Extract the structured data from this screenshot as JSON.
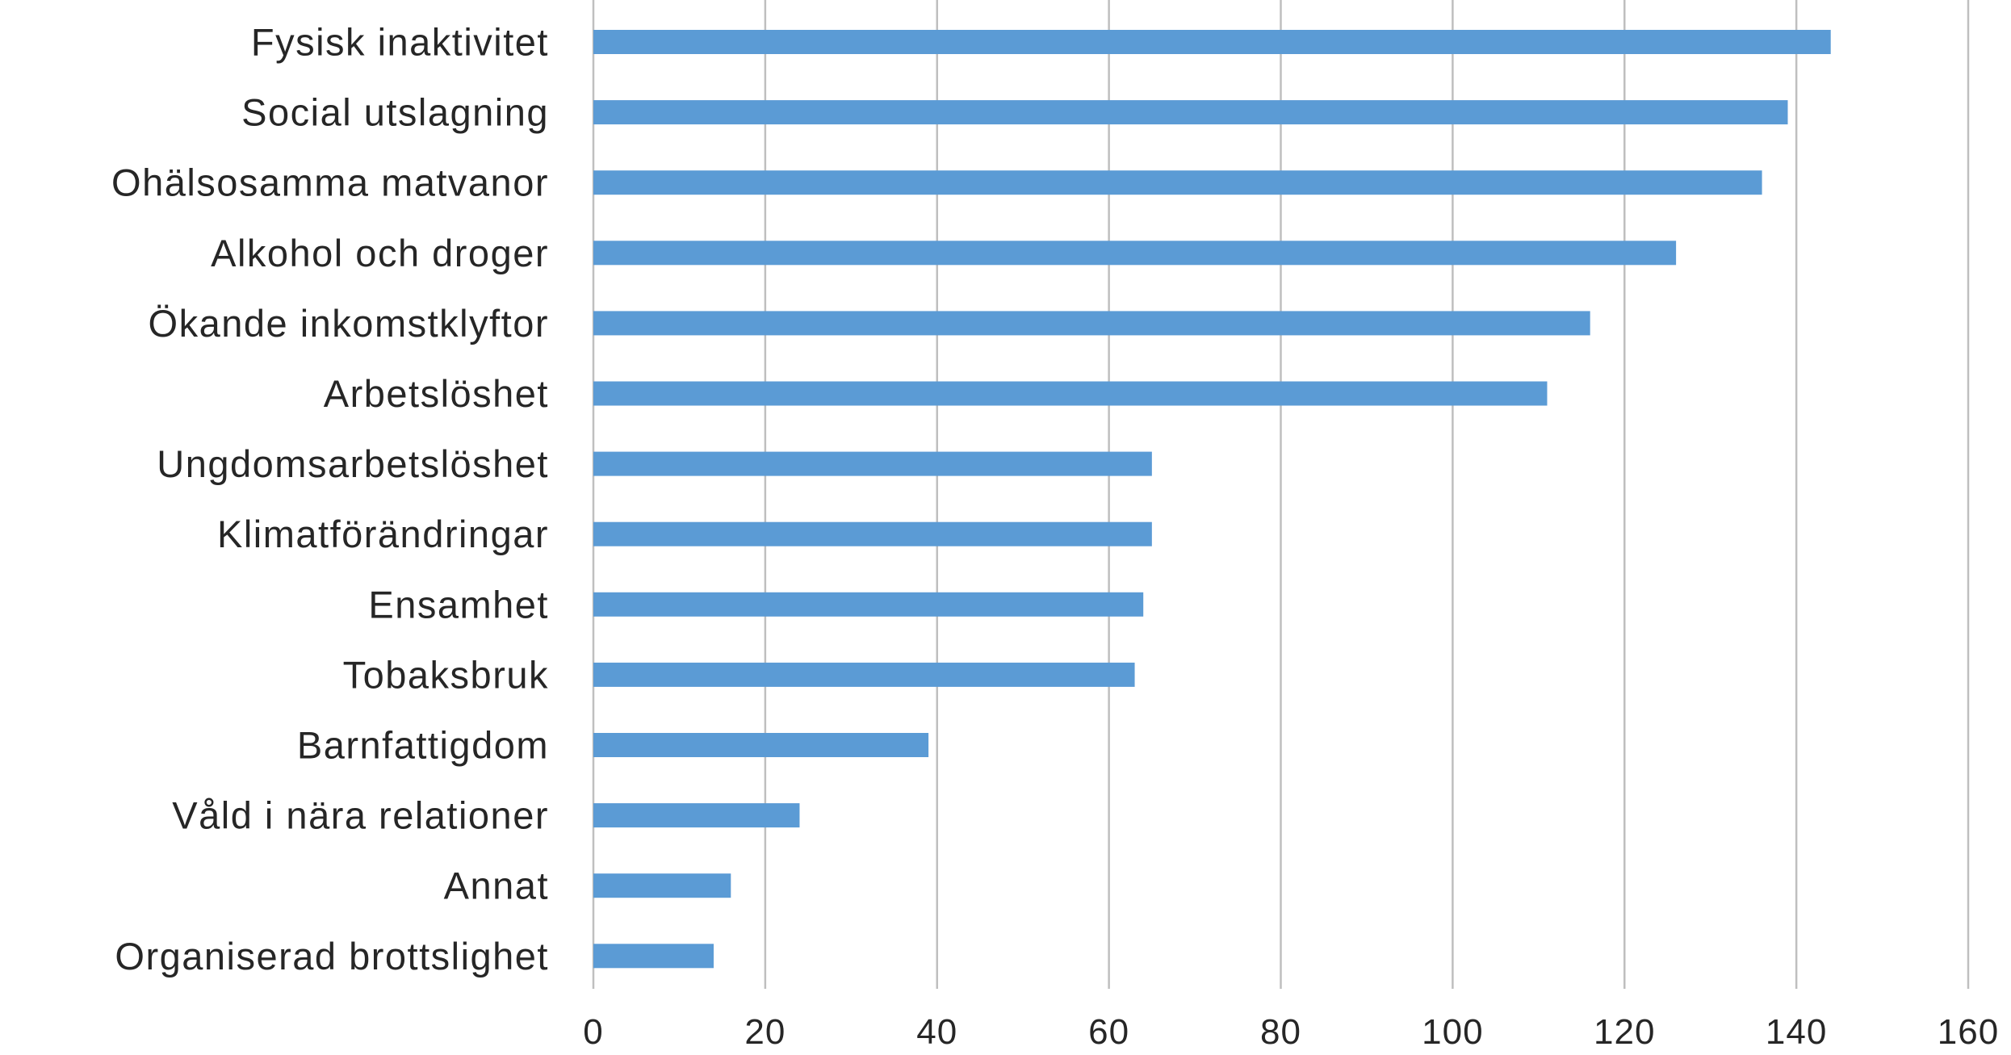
{
  "colors": {
    "bar": "#5b9bd5",
    "grid": "#bfbfbf",
    "text": "#262626",
    "background": "#ffffff"
  },
  "chart_data": {
    "type": "bar",
    "orientation": "horizontal",
    "title": "",
    "xlabel": "",
    "ylabel": "",
    "categories": [
      "Fysisk inaktivitet",
      "Social utslagning",
      "Ohälsosamma matvanor",
      "Alkohol och droger",
      "Ökande inkomstklyftor",
      "Arbetslöshet",
      "Ungdomsarbetslöshet",
      "Klimatförändringar",
      "Ensamhet",
      "Tobaksbruk",
      "Barnfattigdom",
      "Våld i nära relationer",
      "Annat",
      "Organiserad brottslighet"
    ],
    "values": [
      144,
      139,
      136,
      126,
      116,
      111,
      65,
      65,
      64,
      63,
      39,
      24,
      16,
      14
    ],
    "xlim": [
      0,
      160
    ],
    "ticks": [
      "0",
      "20",
      "40",
      "60",
      "80",
      "100",
      "120",
      "140",
      "160"
    ],
    "grid": "vertical major gridlines",
    "legend": "none"
  }
}
